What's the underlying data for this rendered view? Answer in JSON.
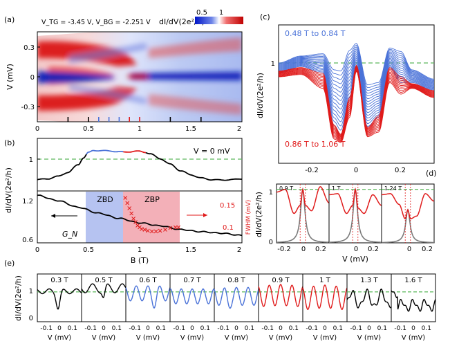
{
  "colors": {
    "blue": "#4a72d8",
    "red": "#e01b1b",
    "black": "#000000",
    "gray": "#7a7a7a",
    "dash": "#5cb85c",
    "zbd": "#a9b9ee",
    "zbp": "#f1a2ab"
  },
  "panel_a": {
    "label": "(a)",
    "gate_text": "V_TG = -3.45 V, V_BG = -2.251 V",
    "colorbar_label": "dI/dV(2e²/h)",
    "colorbar_ticks": [
      "0.5",
      "1"
    ],
    "ylabel": "V (mV)",
    "yticks": [
      "0.3",
      "0",
      "-0.3"
    ],
    "xticks": [
      "0",
      "0.5",
      "1",
      "1.5",
      "2"
    ]
  },
  "panel_b": {
    "label": "(b)",
    "top_annotation": "V = 0 mV",
    "top_ytick": "1",
    "ylabel": "dI/dV(2e²/h)",
    "bottom_left_yticks": [
      "1.2",
      "0.6"
    ],
    "bottom_right_yticks": [
      "0.15",
      "0.1"
    ],
    "right_ylabel": "FWHM (mV)",
    "zbd_label": "ZBD",
    "zbp_label": "ZBP",
    "gn_label": "G_N",
    "xlabel": "B (T)",
    "xticks": [
      "0",
      "0.5",
      "1",
      "1.5",
      "2"
    ]
  },
  "panel_c": {
    "label": "(c)",
    "blue_range": "0.48 T to 0.84 T",
    "red_range": "0.86 T to 1.06 T",
    "ylabel": "dI/dV(2e²/h)",
    "yticks": [
      "1"
    ],
    "xticks": [
      "-0.2",
      "0",
      "0.2"
    ]
  },
  "panel_d": {
    "label": "(d)",
    "ylabel": "dI/dV(2e²/h)",
    "yticks": [
      "1",
      "0"
    ],
    "xlabel": "V (mV)",
    "subpanels": [
      {
        "field": "0.9 T",
        "xticks": [
          "-0.2",
          "0",
          "0.2"
        ]
      },
      {
        "field": "1 T",
        "xticks": [
          "0",
          "0.2"
        ]
      },
      {
        "field": "1.24 T",
        "xticks": [
          "0",
          "0.2"
        ]
      }
    ]
  },
  "panel_e": {
    "label": "(e)",
    "ylabel": "dI/dV(2e²/h)",
    "yticks": [
      "1",
      "0"
    ],
    "xlabel": "V (mV)",
    "xticks": [
      "-0.1",
      "0",
      "0.1"
    ],
    "fields": [
      "0.3 T",
      "0.5 T",
      "0.6 T",
      "0.7 T",
      "0.8 T",
      "0.9 T",
      "1 T",
      "1.3 T",
      "1.6 T"
    ]
  },
  "chart_data": [
    {
      "type": "heatmap",
      "panel": "a",
      "title": "V_TG = -3.45 V, V_BG = -2.251 V",
      "xlabel": "B (T)",
      "ylabel": "V (mV)",
      "xlim": [
        0,
        2
      ],
      "ylim": [
        -0.42,
        0.42
      ],
      "colorbar": {
        "label": "dI/dV(2e²/h)",
        "range": [
          0.3,
          1.3
        ]
      },
      "tick_marks_B": [
        0.3,
        0.5,
        0.6,
        0.7,
        0.8,
        0.9,
        1.0,
        1.3,
        1.6
      ]
    },
    {
      "type": "line",
      "panel": "b-top",
      "ylabel": "dI/dV(2e²/h)",
      "annotation": "V = 0 mV",
      "xlim": [
        0,
        2
      ],
      "ylim": [
        0,
        1.3
      ],
      "reference_line": 1.0,
      "series": [
        {
          "name": "G(V=0)",
          "x": [
            0,
            0.1,
            0.2,
            0.3,
            0.4,
            0.45,
            0.5,
            0.55,
            0.6,
            0.7,
            0.8,
            0.85,
            0.9,
            0.95,
            1.0,
            1.05,
            1.1,
            1.2,
            1.3,
            1.4,
            1.5,
            1.6,
            1.7,
            1.8,
            1.9,
            2.0
          ],
          "y": [
            0.28,
            0.3,
            0.36,
            0.46,
            0.65,
            0.82,
            0.95,
            1.0,
            1.0,
            0.99,
            0.97,
            0.96,
            0.97,
            0.98,
            0.98,
            0.96,
            0.92,
            0.8,
            0.66,
            0.5,
            0.4,
            0.32,
            0.28,
            0.27,
            0.28,
            0.3
          ]
        }
      ]
    },
    {
      "type": "line",
      "panel": "b-bottom",
      "xlabel": "B (T)",
      "xlim": [
        0,
        2
      ],
      "ylim": [
        0.55,
        1.25
      ],
      "y2lim": [
        0.05,
        0.2
      ],
      "y2label": "FWHM (mV)",
      "regions": [
        {
          "name": "ZBD",
          "x": [
            0.48,
            0.84
          ]
        },
        {
          "name": "ZBP",
          "x": [
            0.84,
            1.4
          ]
        }
      ],
      "series": [
        {
          "name": "G_N",
          "x": [
            0,
            0.2,
            0.4,
            0.6,
            0.8,
            1.0,
            1.2,
            1.4,
            1.6,
            1.8,
            2.0
          ],
          "y": [
            1.19,
            1.12,
            1.03,
            0.95,
            0.88,
            0.82,
            0.78,
            0.73,
            0.7,
            0.68,
            0.65
          ]
        },
        {
          "name": "FWHM",
          "axis": "right",
          "x": [
            0.86,
            0.88,
            0.9,
            0.92,
            0.94,
            0.96,
            0.98,
            1.0,
            1.02,
            1.05,
            1.08,
            1.12,
            1.16,
            1.2,
            1.25,
            1.3,
            1.35,
            1.38
          ],
          "y": [
            0.18,
            0.165,
            0.15,
            0.135,
            0.12,
            0.11,
            0.1,
            0.095,
            0.09,
            0.088,
            0.085,
            0.083,
            0.083,
            0.085,
            0.088,
            0.093,
            0.095,
            0.095
          ]
        }
      ]
    },
    {
      "type": "line",
      "panel": "c",
      "ylabel": "dI/dV(2e²/h)",
      "xlim": [
        -0.35,
        0.35
      ],
      "ylim": [
        0.15,
        1.35
      ],
      "reference_line": 1.0,
      "series": [
        {
          "name": "0.48 T to 0.84 T",
          "family": "blue",
          "count": 16,
          "V": [
            -0.35,
            -0.25,
            -0.15,
            -0.1,
            -0.07,
            -0.03,
            0,
            0.05,
            0.1,
            0.15,
            0.2,
            0.25,
            0.35
          ],
          "envelope_top": [
            1.02,
            1.08,
            1.1,
            0.96,
            0.95,
            1.13,
            1.19,
            0.83,
            0.85,
            1.15,
            1.12,
            0.96,
            0.88
          ],
          "envelope_bottom": [
            0.93,
            0.99,
            0.93,
            0.48,
            0.4,
            0.7,
            0.95,
            0.47,
            0.55,
            0.98,
            0.85,
            0.85,
            0.78
          ]
        },
        {
          "name": "0.86 T to 1.06 T",
          "family": "red",
          "count": 11,
          "V": [
            -0.35,
            -0.25,
            -0.15,
            -0.1,
            -0.07,
            -0.03,
            0,
            0.05,
            0.1,
            0.15,
            0.2,
            0.25,
            0.35
          ],
          "envelope_top": [
            0.95,
            0.98,
            0.93,
            0.48,
            0.4,
            0.72,
            1.0,
            0.46,
            0.56,
            0.98,
            0.9,
            0.84,
            0.78
          ],
          "envelope_bottom": [
            0.9,
            0.92,
            0.8,
            0.36,
            0.33,
            0.55,
            0.95,
            0.38,
            0.42,
            0.85,
            0.75,
            0.8,
            0.72
          ]
        }
      ]
    },
    {
      "type": "line",
      "panel": "d",
      "ylabel": "dI/dV(2e²/h)",
      "xlabel": "V (mV)",
      "xlim": [
        -0.3,
        0.3
      ],
      "ylim": [
        0,
        1.1
      ],
      "reference_line": 1.0,
      "series": [
        {
          "name": "0.9 T data",
          "x": [
            -0.3,
            -0.2,
            -0.1,
            -0.03,
            0,
            0.03,
            0.1,
            0.2,
            0.3
          ],
          "y": [
            0.95,
            1.0,
            0.55,
            0.7,
            1.0,
            0.7,
            0.6,
            1.05,
            0.75
          ]
        },
        {
          "name": "1 T data",
          "x": [
            -0.3,
            -0.2,
            -0.1,
            -0.03,
            0,
            0.03,
            0.1,
            0.2,
            0.3
          ],
          "y": [
            0.9,
            0.92,
            0.55,
            0.7,
            1.0,
            0.65,
            0.55,
            0.9,
            0.7
          ]
        },
        {
          "name": "1.24 T data",
          "x": [
            -0.3,
            -0.2,
            -0.1,
            -0.03,
            0,
            0.03,
            0.1,
            0.2,
            0.3
          ],
          "y": [
            0.9,
            0.92,
            0.72,
            0.45,
            0.62,
            0.45,
            0.5,
            0.92,
            0.78
          ]
        }
      ]
    },
    {
      "type": "line",
      "panel": "e",
      "ylabel": "dI/dV(2e²/h)",
      "xlabel": "V (mV)",
      "xlim": [
        -0.17,
        0.17
      ],
      "ylim": [
        0,
        1.6
      ],
      "reference_line": 1.0,
      "fields": [
        "0.3 T",
        "0.5 T",
        "0.6 T",
        "0.7 T",
        "0.8 T",
        "0.9 T",
        "1 T",
        "1.3 T",
        "1.6 T"
      ]
    }
  ]
}
